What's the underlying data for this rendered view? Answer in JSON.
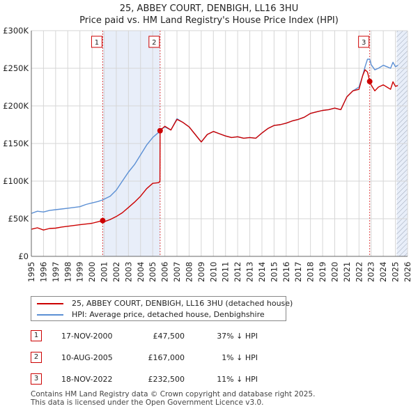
{
  "title": {
    "line1": "25, ABBEY COURT, DENBIGH, LL16 3HU",
    "line2": "Price paid vs. HM Land Registry's House Price Index (HPI)"
  },
  "colors": {
    "property": "#cc0000",
    "hpi": "#5b8fd4",
    "shade": "#e8eef9",
    "hatch": "#9aa4b5",
    "grid": "#d6d6d6"
  },
  "chart_data": {
    "type": "line",
    "title": "25, ABBEY COURT, DENBIGH, LL16 3HU — Price paid vs. HM Land Registry's House Price Index (HPI)",
    "xlim": [
      1995,
      2026
    ],
    "ylim": [
      0,
      300000
    ],
    "x_ticks": [
      1995,
      1996,
      1997,
      1998,
      1999,
      2000,
      2001,
      2002,
      2003,
      2004,
      2005,
      2006,
      2007,
      2008,
      2009,
      2010,
      2011,
      2012,
      2013,
      2014,
      2015,
      2016,
      2017,
      2018,
      2019,
      2020,
      2021,
      2022,
      2023,
      2024,
      2025,
      2026
    ],
    "y_ticks": [
      0,
      50000,
      100000,
      150000,
      200000,
      250000,
      300000
    ],
    "y_tick_labels": [
      "£0",
      "£50K",
      "£100K",
      "£150K",
      "£200K",
      "£250K",
      "£300K"
    ],
    "series": [
      {
        "name": "25, ABBEY COURT, DENBIGH, LL16 3HU (detached house)",
        "x": [
          1995,
          1995.5,
          1996,
          1996.5,
          1997,
          1997.5,
          1998,
          1998.5,
          1999,
          1999.5,
          2000,
          2000.5,
          2000.88,
          2001,
          2001.5,
          2002,
          2002.5,
          2003,
          2003.5,
          2004,
          2004.5,
          2005,
          2005.5,
          2005.6,
          2005.61,
          2006,
          2006.5,
          2007,
          2007.5,
          2008,
          2008.5,
          2009,
          2009.5,
          2010,
          2010.5,
          2011,
          2011.5,
          2012,
          2012.5,
          2013,
          2013.5,
          2014,
          2014.5,
          2015,
          2015.5,
          2016,
          2016.5,
          2017,
          2017.5,
          2018,
          2018.5,
          2019,
          2019.5,
          2020,
          2020.5,
          2021,
          2021.5,
          2022,
          2022.3,
          2022.5,
          2022.7,
          2022.88,
          2023,
          2023.3,
          2023.6,
          2024,
          2024.3,
          2024.6,
          2024.8,
          2025,
          2025.2
        ],
        "values": [
          36000,
          38000,
          35000,
          37000,
          37500,
          39000,
          40000,
          41000,
          42000,
          43000,
          44000,
          46000,
          47500,
          46000,
          49000,
          53000,
          58000,
          65000,
          72000,
          80000,
          90000,
          97000,
          98000,
          100000,
          167000,
          173000,
          168000,
          182000,
          178000,
          172000,
          162000,
          152000,
          162000,
          166000,
          163000,
          160000,
          158000,
          159000,
          157000,
          158000,
          157000,
          164000,
          170000,
          174000,
          175000,
          177000,
          180000,
          182000,
          185000,
          190000,
          192000,
          194000,
          195000,
          197000,
          195000,
          212000,
          220000,
          222000,
          240000,
          248000,
          245000,
          232500,
          228000,
          220000,
          225000,
          228000,
          225000,
          222000,
          232000,
          226000,
          227000
        ]
      },
      {
        "name": "HPI: Average price, detached house, Denbighshire",
        "x": [
          1995,
          1995.5,
          1996,
          1996.5,
          1997,
          1997.5,
          1998,
          1998.5,
          1999,
          1999.5,
          2000,
          2000.5,
          2000.88,
          2001,
          2001.5,
          2002,
          2002.5,
          2003,
          2003.5,
          2004,
          2004.5,
          2005,
          2005.5,
          2005.6,
          2006,
          2006.5,
          2007,
          2007.5,
          2008,
          2008.5,
          2009,
          2009.5,
          2010,
          2010.5,
          2011,
          2011.5,
          2012,
          2012.5,
          2013,
          2013.5,
          2014,
          2014.5,
          2015,
          2015.5,
          2016,
          2016.5,
          2017,
          2017.5,
          2018,
          2018.5,
          2019,
          2019.5,
          2020,
          2020.5,
          2021,
          2021.5,
          2022,
          2022.3,
          2022.5,
          2022.7,
          2022.88,
          2023,
          2023.3,
          2023.6,
          2024,
          2024.3,
          2024.6,
          2024.8,
          2025,
          2025.2
        ],
        "values": [
          57000,
          60000,
          59000,
          61000,
          62000,
          63000,
          64000,
          65000,
          66000,
          69000,
          71000,
          73000,
          75000,
          76000,
          80000,
          88000,
          100000,
          112000,
          122000,
          135000,
          148000,
          158000,
          165000,
          168500,
          172000,
          168000,
          183000,
          178000,
          172000,
          162000,
          152000,
          162000,
          166000,
          163000,
          160000,
          158000,
          159000,
          157000,
          158000,
          157000,
          164000,
          170000,
          174000,
          175000,
          177000,
          180000,
          182000,
          185000,
          190000,
          192000,
          194000,
          195000,
          197000,
          195000,
          212000,
          220000,
          225000,
          240000,
          252000,
          262000,
          262000,
          255000,
          248000,
          250000,
          254000,
          252000,
          250000,
          258000,
          252000,
          254000
        ]
      }
    ],
    "sale_markers": [
      {
        "label": "1",
        "x": 2000.88,
        "value": 47500
      },
      {
        "label": "2",
        "x": 2005.61,
        "value": 167000
      },
      {
        "label": "3",
        "x": 2022.88,
        "value": 232500
      }
    ],
    "shaded_ranges": [
      [
        2000.88,
        2005.61
      ]
    ],
    "hatched_from": 2025.1
  },
  "legend": {
    "property_label": "25, ABBEY COURT, DENBIGH, LL16 3HU (detached house)",
    "hpi_label": "HPI: Average price, detached house, Denbighshire"
  },
  "sales": [
    {
      "num": "1",
      "date": "17-NOV-2000",
      "price": "£47,500",
      "hpi": "37% ↓ HPI"
    },
    {
      "num": "2",
      "date": "10-AUG-2005",
      "price": "£167,000",
      "hpi": "1% ↓ HPI"
    },
    {
      "num": "3",
      "date": "18-NOV-2022",
      "price": "£232,500",
      "hpi": "11% ↓ HPI"
    }
  ],
  "footer": {
    "line1": "Contains HM Land Registry data © Crown copyright and database right 2025.",
    "line2": "This data is licensed under the Open Government Licence v3.0."
  }
}
